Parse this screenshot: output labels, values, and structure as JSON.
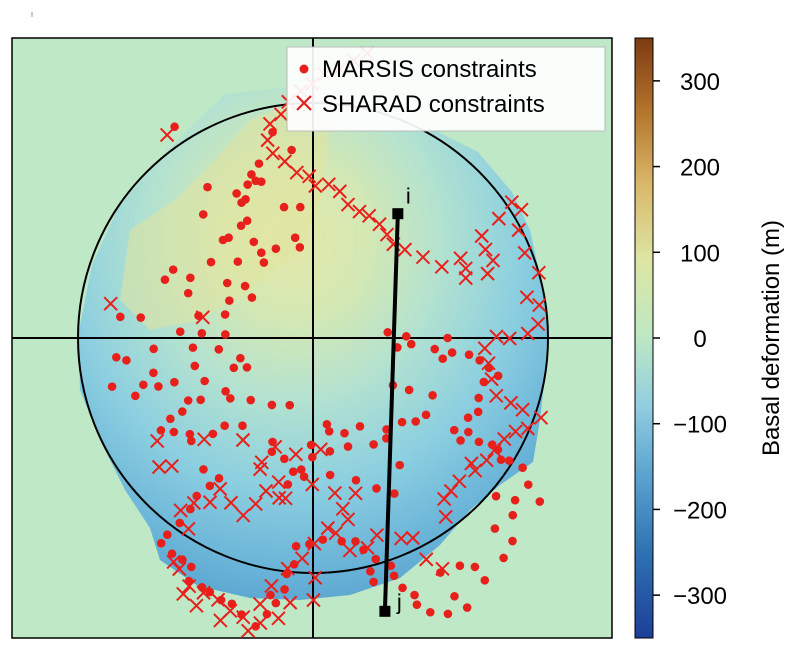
{
  "chart_data": {
    "type": "scatter",
    "title": "",
    "legend": {
      "placement": "top-right",
      "entries": [
        {
          "label": "MARSIS constraints",
          "marker": "dot",
          "color": "#e8201c"
        },
        {
          "label": "SHARAD constraints",
          "marker": "x",
          "color": "#e8201c"
        }
      ]
    },
    "colorbar": {
      "label": "Basal deformation (m)",
      "range": [
        -350,
        350
      ],
      "ticks": [
        300,
        200,
        100,
        0,
        -100,
        -200,
        -300
      ],
      "tick_labels": [
        "300",
        "200",
        "100",
        "0",
        "−100",
        "−200",
        "−300"
      ],
      "colors": [
        {
          "v": -350,
          "c": "#1d3f98"
        },
        {
          "v": -250,
          "c": "#2f72b2"
        },
        {
          "v": -160,
          "c": "#5ba3cf"
        },
        {
          "v": -80,
          "c": "#92cde0"
        },
        {
          "v": 0,
          "c": "#bde8c4"
        },
        {
          "v": 90,
          "c": "#dde6a4"
        },
        {
          "v": 180,
          "c": "#d9b76a"
        },
        {
          "v": 260,
          "c": "#b5782f"
        },
        {
          "v": 350,
          "c": "#7d3b12"
        }
      ]
    },
    "point_labels": [
      {
        "text": "i",
        "x": 0.361,
        "y": 0.529
      },
      {
        "text": "j",
        "x": 0.306,
        "y": -1.163
      }
    ],
    "profile_line": {
      "from": [
        0.361,
        0.529
      ],
      "to": [
        0.306,
        -1.163
      ]
    },
    "marsis": [
      [
        -0.589,
        0.899
      ],
      [
        -0.172,
        0.876
      ],
      [
        -0.091,
        0.8
      ],
      [
        -0.23,
        0.742
      ],
      [
        -0.262,
        0.696
      ],
      [
        -0.22,
        0.665
      ],
      [
        -0.244,
        0.669
      ],
      [
        -0.278,
        0.653
      ],
      [
        -0.449,
        0.642
      ],
      [
        -0.325,
        0.615
      ],
      [
        -0.287,
        0.59
      ],
      [
        -0.304,
        0.576
      ],
      [
        -0.054,
        0.557
      ],
      [
        -0.123,
        0.557
      ],
      [
        -0.467,
        0.526
      ],
      [
        -0.28,
        0.499
      ],
      [
        -0.306,
        0.478
      ],
      [
        -0.383,
        0.417
      ],
      [
        -0.359,
        0.427
      ],
      [
        -0.252,
        0.409
      ],
      [
        -0.076,
        0.427
      ],
      [
        -0.056,
        0.386
      ],
      [
        -0.158,
        0.38
      ],
      [
        -0.22,
        0.363
      ],
      [
        -0.209,
        0.321
      ],
      [
        -0.32,
        0.325
      ],
      [
        -0.434,
        0.323
      ],
      [
        -0.595,
        0.291
      ],
      [
        -0.522,
        0.256
      ],
      [
        -0.63,
        0.248
      ],
      [
        -0.531,
        0.191
      ],
      [
        -0.365,
        0.234
      ],
      [
        -0.289,
        0.221
      ],
      [
        -0.26,
        0.172
      ],
      [
        -0.356,
        0.159
      ],
      [
        -0.374,
        0.1
      ],
      [
        -0.487,
        0.095
      ],
      [
        -0.565,
        0.027
      ],
      [
        -0.473,
        0.02
      ],
      [
        -0.511,
        -0.041
      ],
      [
        -0.401,
        -0.048
      ],
      [
        -0.373,
        0.015
      ],
      [
        -0.309,
        -0.086
      ],
      [
        -0.337,
        -0.127
      ],
      [
        -0.281,
        -0.125
      ],
      [
        -0.352,
        -0.257
      ],
      [
        -0.265,
        -0.264
      ],
      [
        -0.372,
        -0.227
      ],
      [
        -0.461,
        -0.183
      ],
      [
        -0.503,
        -0.119
      ],
      [
        -0.59,
        -0.188
      ],
      [
        -0.658,
        -0.206
      ],
      [
        -0.679,
        -0.148
      ],
      [
        -0.794,
        -0.095
      ],
      [
        -0.678,
        -0.046
      ],
      [
        -0.733,
        0.087
      ],
      [
        -0.82,
        0.09
      ],
      [
        -0.837,
        -0.082
      ],
      [
        -0.855,
        -0.207
      ],
      [
        -0.756,
        -0.246
      ],
      [
        -0.722,
        -0.199
      ],
      [
        -0.531,
        -0.266
      ],
      [
        -0.478,
        -0.263
      ],
      [
        -0.556,
        -0.313
      ],
      [
        -0.607,
        -0.344
      ],
      [
        -0.647,
        -0.393
      ],
      [
        -0.592,
        -0.4
      ],
      [
        -0.524,
        -0.409
      ],
      [
        -0.518,
        -0.438
      ],
      [
        -0.426,
        -0.408
      ],
      [
        -0.376,
        -0.373
      ],
      [
        -0.3,
        -0.373
      ],
      [
        -0.175,
        -0.285
      ],
      [
        -0.099,
        -0.286
      ],
      [
        -0.172,
        -0.442
      ],
      [
        -0.175,
        -0.484
      ],
      [
        -0.122,
        -0.514
      ],
      [
        -0.008,
        -0.455
      ],
      [
        0.059,
        -0.367
      ],
      [
        0.069,
        -0.397
      ],
      [
        0.134,
        -0.405
      ],
      [
        0.2,
        -0.376
      ],
      [
        0.258,
        -0.453
      ],
      [
        0.149,
        -0.462
      ],
      [
        0.072,
        -0.482
      ],
      [
        -0.003,
        -0.507
      ],
      [
        -0.05,
        -0.56
      ],
      [
        -0.107,
        -0.623
      ],
      [
        -0.084,
        -0.569
      ],
      [
        -0.038,
        -0.59
      ],
      [
        0.073,
        -0.583
      ],
      [
        0.183,
        -0.605
      ],
      [
        0.27,
        -0.64
      ],
      [
        0.346,
        -0.662
      ],
      [
        0.369,
        -0.541
      ],
      [
        0.312,
        -0.427
      ],
      [
        0.313,
        -0.389
      ],
      [
        0.379,
        -0.358
      ],
      [
        0.437,
        -0.355
      ],
      [
        0.481,
        -0.327
      ],
      [
        0.509,
        -0.244
      ],
      [
        0.409,
        -0.221
      ],
      [
        0.34,
        -0.201
      ],
      [
        0.359,
        -0.04
      ],
      [
        0.318,
        0.024
      ],
      [
        0.397,
        0.007
      ],
      [
        0.418,
        -0.026
      ],
      [
        0.518,
        -0.047
      ],
      [
        0.573,
        0.0
      ],
      [
        0.552,
        -0.088
      ],
      [
        0.592,
        -0.062
      ],
      [
        0.664,
        -0.071
      ],
      [
        0.709,
        -0.095
      ],
      [
        0.749,
        -0.127
      ],
      [
        0.727,
        -0.187
      ],
      [
        0.788,
        -0.161
      ],
      [
        0.705,
        -0.255
      ],
      [
        0.703,
        -0.314
      ],
      [
        0.66,
        -0.339
      ],
      [
        0.661,
        -0.4
      ],
      [
        0.601,
        -0.392
      ],
      [
        0.628,
        -0.436
      ],
      [
        0.706,
        -0.442
      ],
      [
        0.763,
        -0.454
      ],
      [
        0.787,
        -0.475
      ],
      [
        0.8,
        -0.518
      ],
      [
        0.835,
        -0.522
      ],
      [
        0.892,
        -0.552
      ],
      [
        0.916,
        -0.624
      ],
      [
        0.965,
        -0.696
      ],
      [
        0.86,
        -0.69
      ],
      [
        0.779,
        -0.673
      ],
      [
        0.85,
        -0.754
      ],
      [
        0.774,
        -0.811
      ],
      [
        0.849,
        -0.864
      ],
      [
        0.811,
        -0.936
      ],
      [
        0.731,
        -1.031
      ],
      [
        0.689,
        -0.974
      ],
      [
        0.625,
        -0.969
      ],
      [
        0.542,
        -0.998
      ],
      [
        0.602,
        -1.099
      ],
      [
        0.656,
        -1.147
      ],
      [
        0.574,
        -1.174
      ],
      [
        0.499,
        -1.167
      ],
      [
        0.442,
        -1.135
      ],
      [
        0.432,
        -1.094
      ],
      [
        0.381,
        -1.063
      ],
      [
        0.345,
        -1.012
      ],
      [
        0.331,
        -0.969
      ],
      [
        0.258,
        -1.038
      ],
      [
        0.244,
        -0.993
      ],
      [
        0.267,
        -0.941
      ],
      [
        0.215,
        -0.901
      ],
      [
        0.181,
        -0.865
      ],
      [
        0.122,
        -0.865
      ],
      [
        0.042,
        -0.858
      ],
      [
        -0.015,
        -0.877
      ],
      [
        -0.072,
        -0.886
      ],
      [
        -0.08,
        -0.963
      ],
      [
        -0.112,
        -1.004
      ],
      [
        -0.121,
        -1.07
      ],
      [
        -0.181,
        -1.094
      ],
      [
        -0.158,
        -1.128
      ],
      [
        -0.196,
        -1.175
      ],
      [
        -0.244,
        -1.227
      ],
      [
        -0.304,
        -1.177
      ],
      [
        -0.345,
        -1.131
      ],
      [
        -0.391,
        -1.115
      ],
      [
        -0.439,
        -1.081
      ],
      [
        -0.472,
        -1.061
      ],
      [
        -0.528,
        -1.034
      ],
      [
        -0.518,
        -0.974
      ],
      [
        -0.556,
        -0.943
      ],
      [
        -0.6,
        -0.918
      ],
      [
        -0.646,
        -0.873
      ],
      [
        -0.62,
        -0.837
      ],
      [
        -0.567,
        -0.787
      ],
      [
        -0.522,
        -0.728
      ],
      [
        -0.495,
        -0.672
      ],
      [
        -0.439,
        -0.629
      ],
      [
        -0.4,
        -0.597
      ],
      [
        -0.466,
        -0.559
      ]
    ],
    "sharad": [
      [
        -0.621,
        0.864
      ],
      [
        -0.861,
        0.146
      ],
      [
        -0.469,
        0.088
      ],
      [
        -0.663,
        -0.438
      ],
      [
        -0.601,
        -0.545
      ],
      [
        -0.655,
        -0.549
      ],
      [
        -0.463,
        -0.431
      ],
      [
        -0.298,
        -0.434
      ],
      [
        -0.161,
        -0.463
      ],
      [
        -0.073,
        -0.495
      ],
      [
        0.033,
        -0.474
      ],
      [
        -0.218,
        -0.529
      ],
      [
        -0.225,
        -0.558
      ],
      [
        -0.146,
        -0.613
      ],
      [
        -0.003,
        -0.623
      ],
      [
        -0.117,
        -0.682
      ],
      [
        0.093,
        -0.66
      ],
      [
        0.181,
        -0.661
      ],
      [
        0.127,
        -0.727
      ],
      [
        0.063,
        -0.809
      ],
      [
        0.006,
        -0.875
      ],
      [
        -0.046,
        -0.938
      ],
      [
        -0.108,
        -0.981
      ],
      [
        -0.177,
        -1.055
      ],
      [
        -0.225,
        -1.132
      ],
      [
        -0.297,
        -1.188
      ],
      [
        -0.352,
        -1.161
      ],
      [
        -0.404,
        -1.114
      ],
      [
        -0.466,
        -1.084
      ],
      [
        -0.527,
        -1.056
      ],
      [
        -0.569,
        -0.983
      ],
      [
        -0.593,
        -0.953
      ],
      [
        -0.53,
        -0.812
      ],
      [
        -0.563,
        -0.734
      ],
      [
        -0.507,
        -0.702
      ],
      [
        -0.438,
        -0.699
      ],
      [
        -0.395,
        -0.642
      ],
      [
        -0.349,
        -0.701
      ],
      [
        -0.297,
        -0.755
      ],
      [
        -0.244,
        -0.706
      ],
      [
        -0.2,
        -0.651
      ],
      [
        -0.144,
        -0.68
      ],
      [
        0.009,
        -1.02
      ],
      [
        0.002,
        -1.115
      ],
      [
        -0.097,
        -1.126
      ],
      [
        -0.147,
        -1.193
      ],
      [
        -0.224,
        -1.213
      ],
      [
        -0.276,
        -1.246
      ],
      [
        -0.394,
        -1.202
      ],
      [
        -0.496,
        -1.139
      ],
      [
        -0.552,
        -1.089
      ],
      [
        0.149,
        -0.772
      ],
      [
        0.097,
        -0.83
      ],
      [
        0.157,
        -0.904
      ],
      [
        0.232,
        -0.893
      ],
      [
        0.272,
        -0.839
      ],
      [
        0.375,
        -0.853
      ],
      [
        0.425,
        -0.851
      ],
      [
        0.482,
        -0.942
      ],
      [
        0.551,
        -0.982
      ],
      [
        0.565,
        -0.761
      ],
      [
        0.558,
        -0.685
      ],
      [
        0.587,
        -0.651
      ],
      [
        0.623,
        -0.61
      ],
      [
        0.69,
        -0.564
      ],
      [
        0.674,
        -0.534
      ],
      [
        0.739,
        -0.52
      ],
      [
        0.772,
        -0.478
      ],
      [
        0.814,
        -0.43
      ],
      [
        0.862,
        -0.398
      ],
      [
        0.914,
        -0.385
      ],
      [
        0.97,
        -0.339
      ],
      [
        0.892,
        -0.305
      ],
      [
        0.842,
        -0.276
      ],
      [
        0.78,
        -0.246
      ],
      [
        0.76,
        -0.175
      ],
      [
        0.747,
        -0.107
      ],
      [
        0.731,
        -0.044
      ],
      [
        0.781,
        0.006
      ],
      [
        0.837,
        -0.002
      ],
      [
        0.914,
        0.019
      ],
      [
        0.958,
        0.06
      ],
      [
        0.963,
        0.14
      ],
      [
        0.91,
        0.173
      ],
      [
        0.961,
        0.278
      ],
      [
        0.901,
        0.362
      ],
      [
        0.875,
        0.459
      ],
      [
        0.887,
        0.546
      ],
      [
        0.846,
        0.578
      ],
      [
        0.791,
        0.508
      ],
      [
        0.718,
        0.434
      ],
      [
        0.734,
        0.377
      ],
      [
        0.766,
        0.33
      ],
      [
        0.743,
        0.274
      ],
      [
        0.65,
        0.255
      ],
      [
        0.65,
        0.296
      ],
      [
        0.628,
        0.339
      ],
      [
        0.548,
        0.303
      ],
      [
        0.468,
        0.344
      ],
      [
        0.391,
        0.376
      ],
      [
        0.342,
        0.399
      ],
      [
        0.315,
        0.44
      ],
      [
        0.283,
        0.484
      ],
      [
        0.239,
        0.52
      ],
      [
        0.198,
        0.538
      ],
      [
        0.149,
        0.568
      ],
      [
        0.114,
        0.624
      ],
      [
        0.067,
        0.654
      ],
      [
        0.01,
        0.647
      ],
      [
        -0.016,
        0.688
      ],
      [
        -0.069,
        0.704
      ],
      [
        -0.12,
        0.751
      ],
      [
        -0.171,
        0.786
      ],
      [
        -0.193,
        0.842
      ],
      [
        -0.183,
        0.911
      ],
      [
        -0.136,
        0.952
      ],
      [
        -0.105,
        1.005
      ],
      [
        -0.052,
        1.051
      ],
      [
        -0.003,
        1.081
      ],
      [
        0.049,
        1.122
      ],
      [
        0.114,
        1.146
      ],
      [
        0.174,
        1.181
      ],
      [
        0.231,
        1.212
      ]
    ]
  }
}
